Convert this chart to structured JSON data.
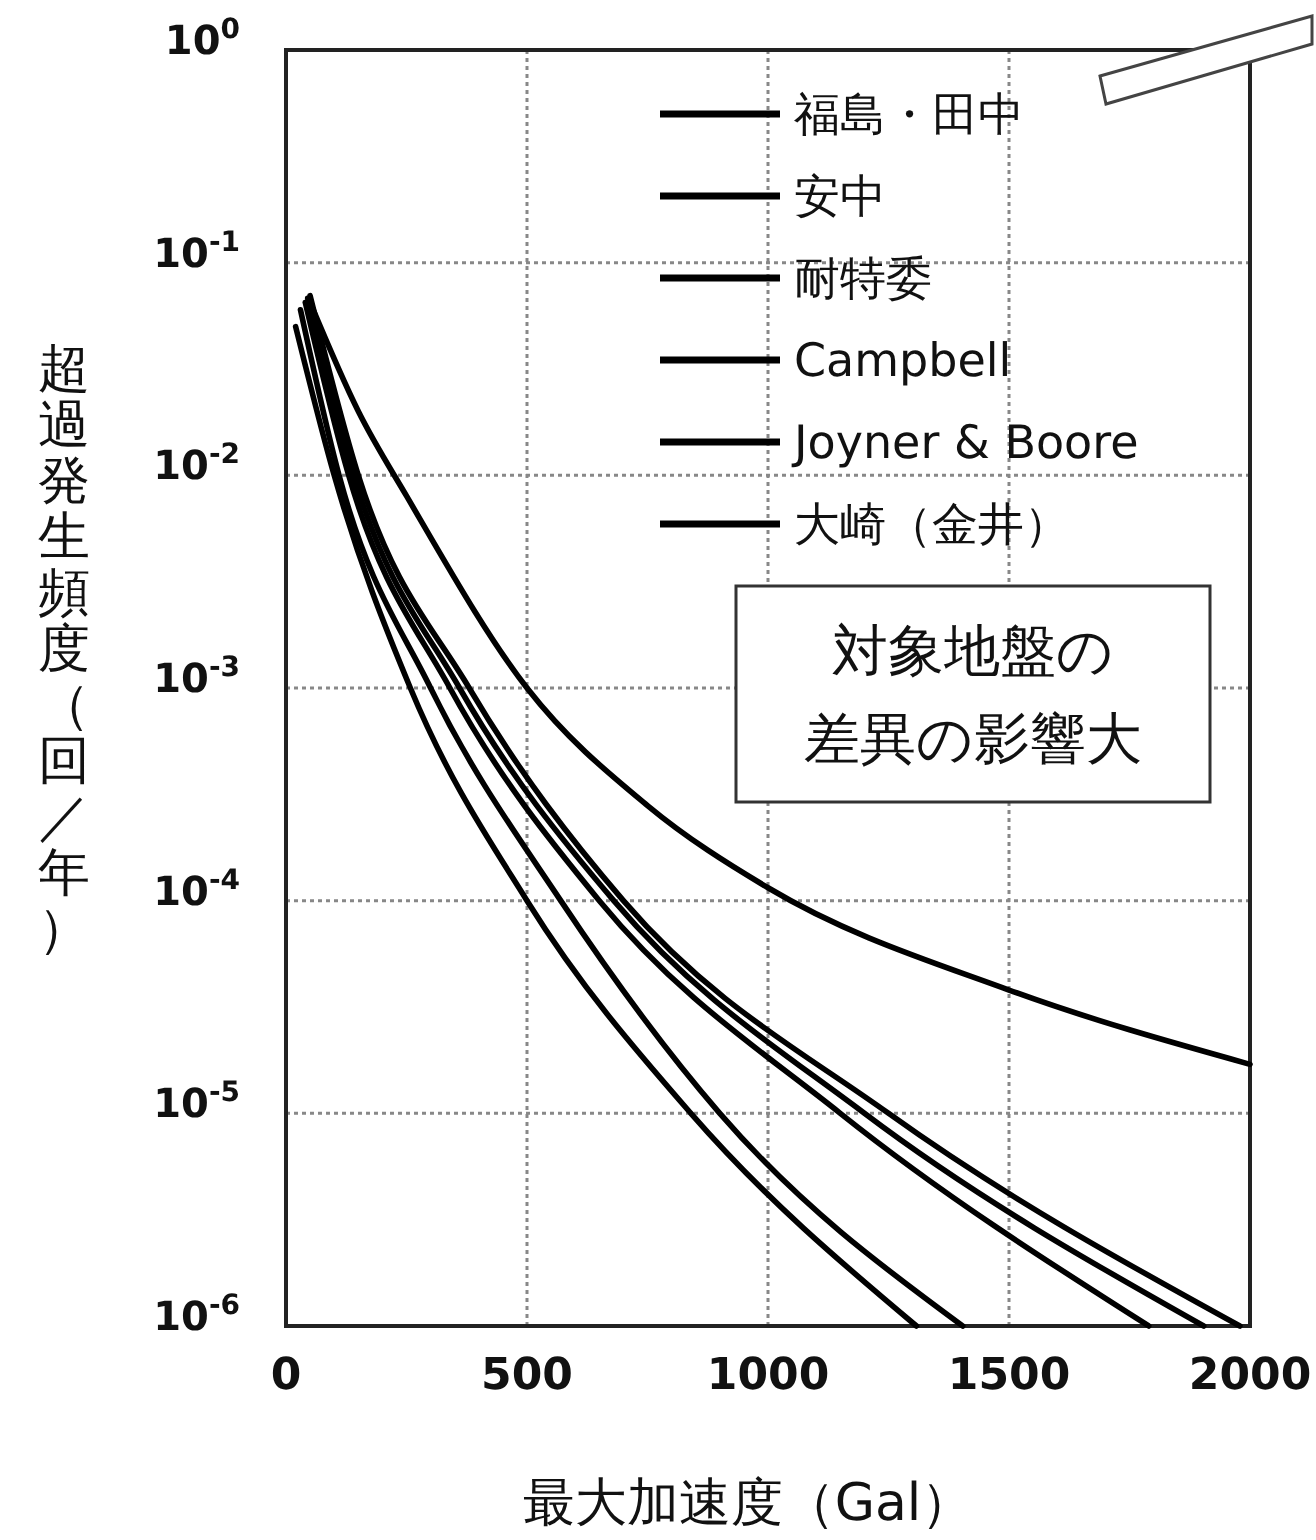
{
  "chart_data": {
    "type": "line",
    "xlabel": "最大加速度（Gal）",
    "ylabel": "超過発生頻度（回／年）",
    "xlim": [
      0,
      2000
    ],
    "xticks": [
      0,
      500,
      1000,
      1500,
      2000
    ],
    "ylim": [
      1e-06,
      1
    ],
    "log": "y",
    "yticks": [
      {
        "value": 1,
        "label": "10$^{0}$"
      },
      {
        "value": 0.1,
        "label": "10$^{-1}$"
      },
      {
        "value": 0.01,
        "label": "10$^{-2}$"
      },
      {
        "value": 0.001,
        "label": "10$^{-3}$"
      },
      {
        "value": 0.0001,
        "label": "10$^{-4}$"
      },
      {
        "value": 1e-05,
        "label": "10$^{-5}$"
      },
      {
        "value": 1e-06,
        "label": "10$^{-6}$"
      }
    ],
    "grid": true,
    "legend": "top right",
    "line_style": "solid",
    "marker": "none",
    "annotations": [
      "対象地盤の差異の影響大"
    ],
    "series": [
      {
        "name": "福島・田中",
        "color": "#000000",
        "x": [
          50,
          150,
          250,
          500,
          750,
          1000,
          1500,
          2000
        ],
        "values": [
          0.065,
          0.02,
          0.008,
          0.001,
          0.00028,
          0.000115,
          3.8e-05,
          1.7e-05
        ]
      },
      {
        "name": "安中",
        "color": "#000000",
        "x": [
          20,
          100,
          258,
          500,
          840,
          1308
        ],
        "values": [
          0.05,
          0.01,
          0.001,
          0.0001,
          1e-05,
          1e-06
        ]
      },
      {
        "name": "耐特委",
        "color": "#000000",
        "x": [
          30,
          110,
          300,
          570,
          900,
          1404
        ],
        "values": [
          0.06,
          0.01,
          0.001,
          0.0001,
          1e-05,
          1e-06
        ]
      },
      {
        "name": "Campbell",
        "color": "#000000",
        "x": [
          40,
          130,
          340,
          650,
          1150,
          1790
        ],
        "values": [
          0.065,
          0.01,
          0.001,
          0.0001,
          1e-05,
          1e-06
        ]
      },
      {
        "name": "Joyner & Boore",
        "color": "#000000",
        "x": [
          45,
          140,
          360,
          680,
          1200,
          1904
        ],
        "values": [
          0.068,
          0.01,
          0.001,
          0.0001,
          1e-05,
          1e-06
        ]
      },
      {
        "name": "大崎（金井）",
        "color": "#000000",
        "x": [
          50,
          150,
          380,
          700,
          1250,
          1979
        ],
        "values": [
          0.07,
          0.01,
          0.001,
          0.0001,
          1e-05,
          1e-06
        ]
      }
    ]
  }
}
